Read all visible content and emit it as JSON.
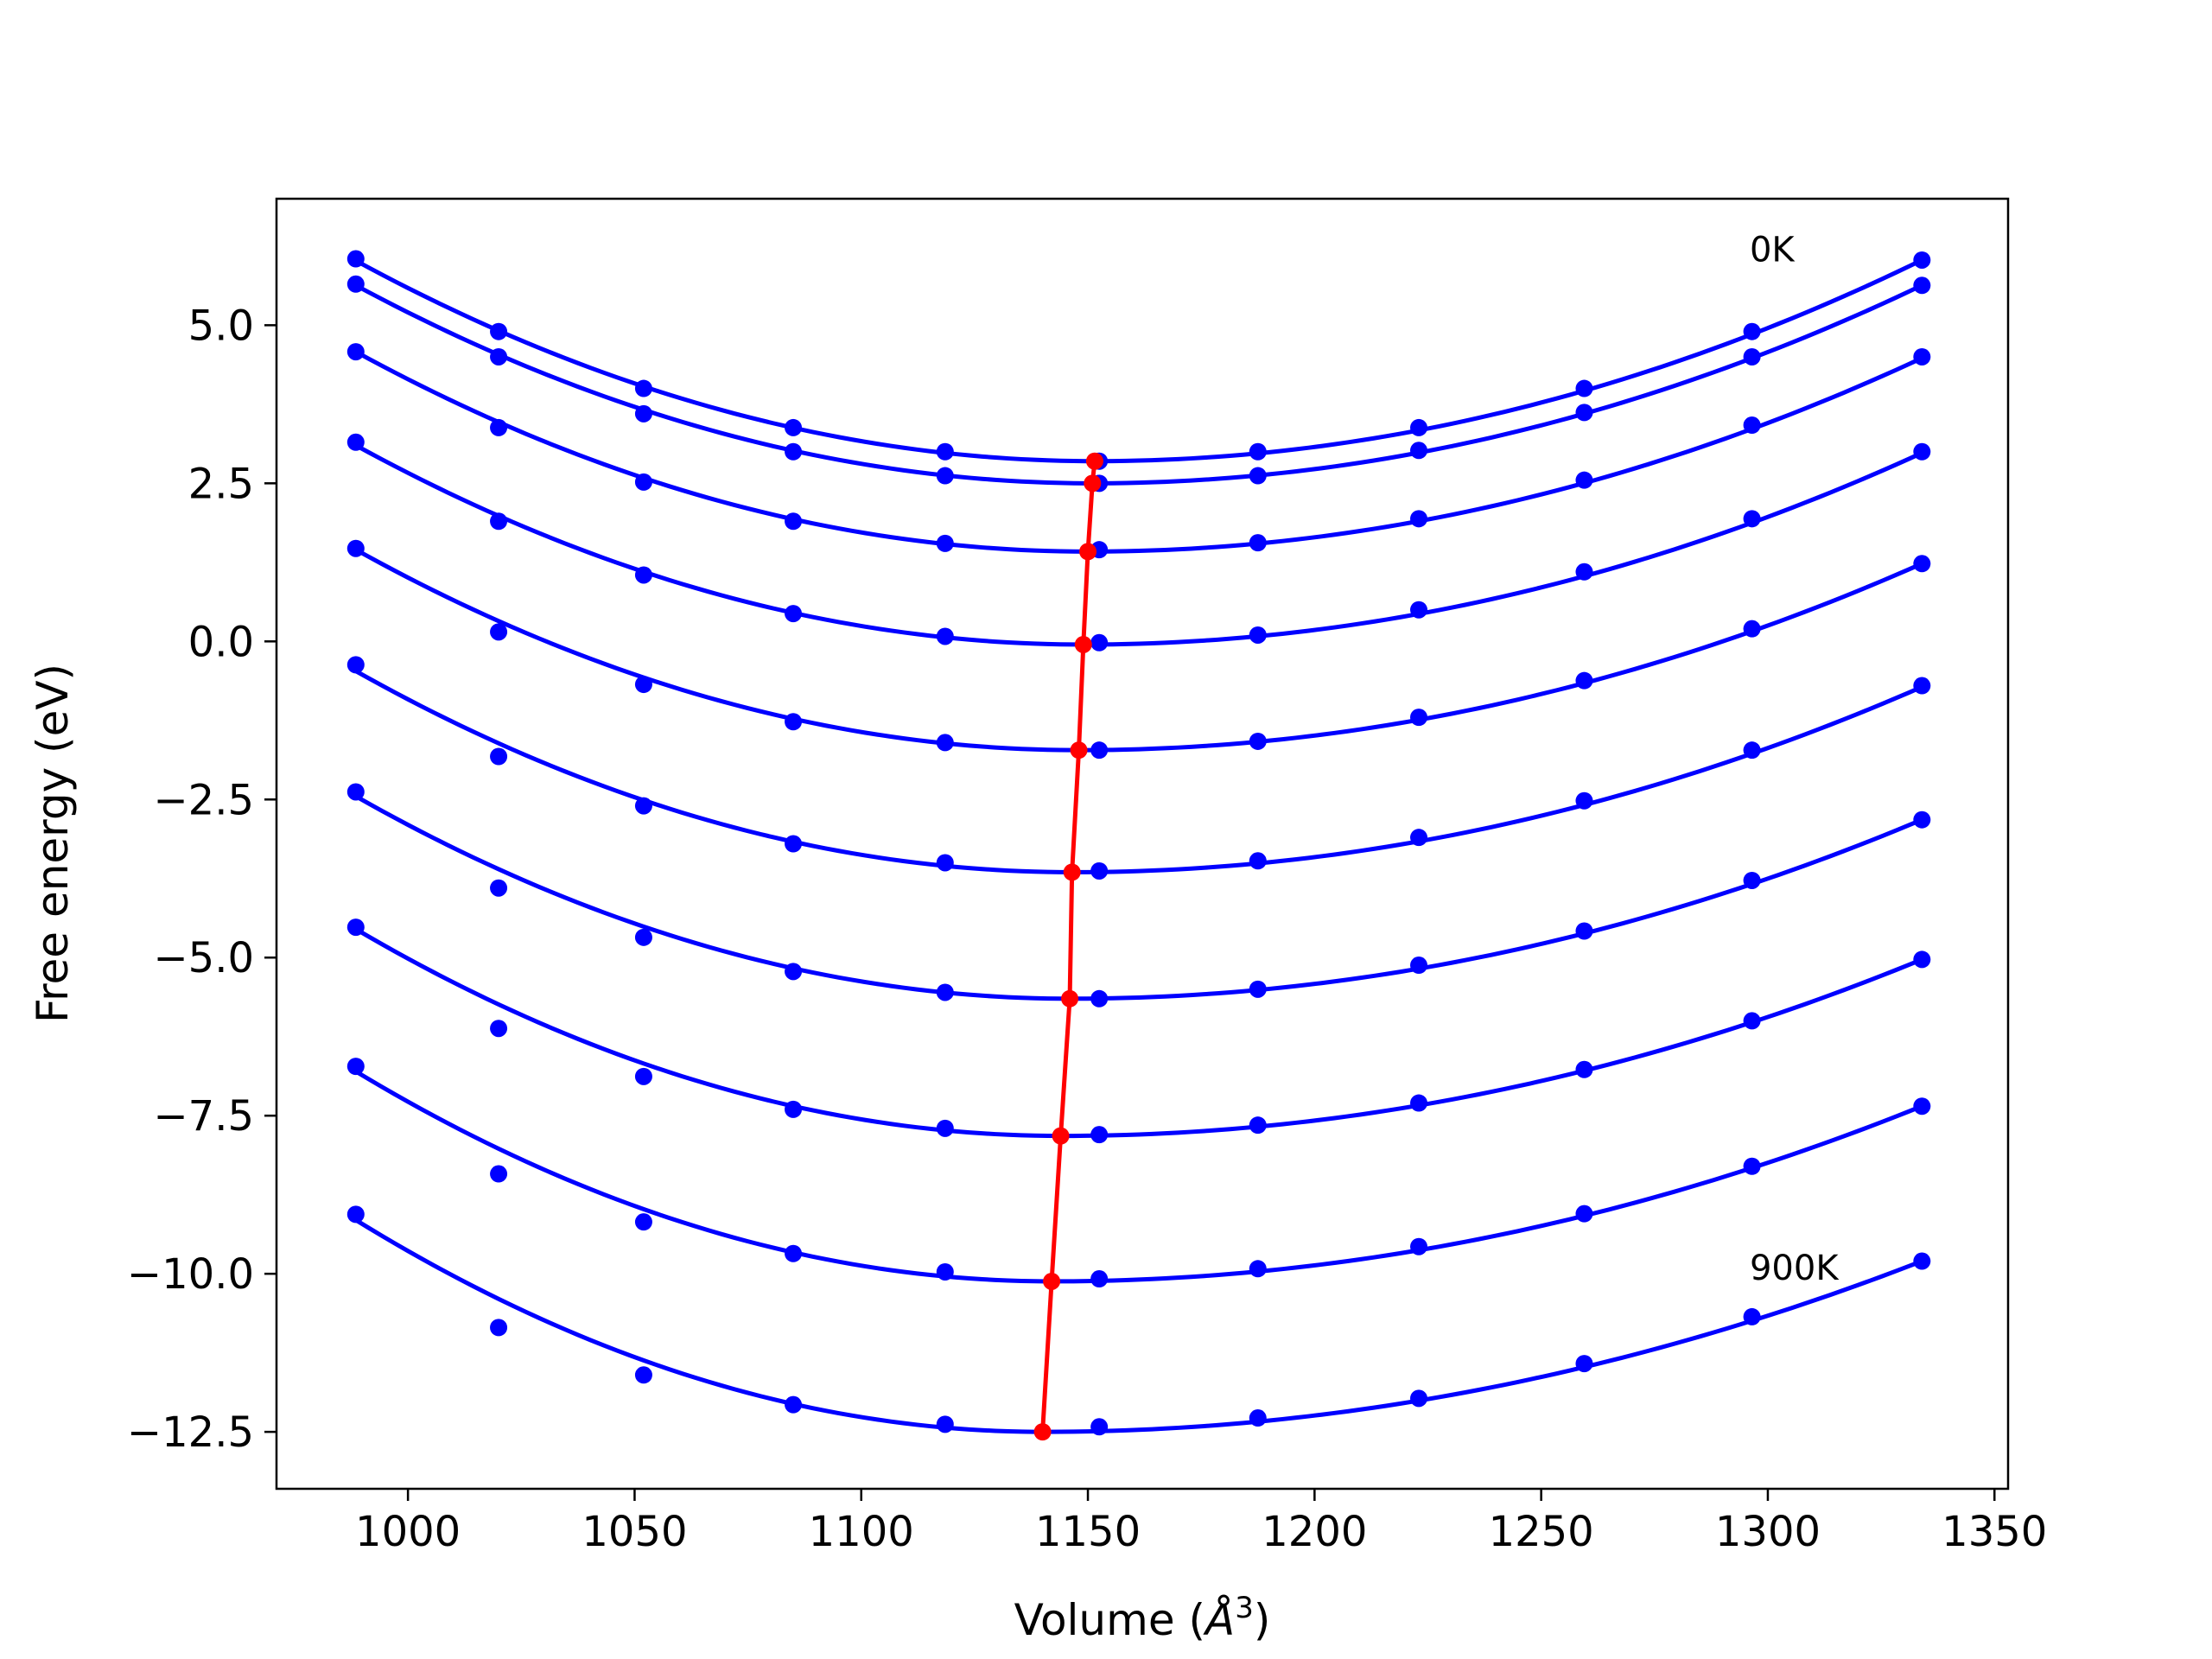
{
  "chart_data": {
    "type": "line",
    "title": "",
    "xlabel": "Volume (",
    "xlabel_unit": "Å",
    "xlabel_exp": "3",
    "xlabel_end": ")",
    "ylabel": "Free energy (eV)",
    "xlim": [
      971,
      1353
    ],
    "ylim": [
      -13.4,
      7.0
    ],
    "xticks": [
      1000,
      1050,
      1100,
      1150,
      1200,
      1250,
      1300,
      1350
    ],
    "xtick_labels": [
      "1000",
      "1050",
      "1100",
      "1150",
      "1200",
      "1250",
      "1300",
      "1350"
    ],
    "yticks": [
      5.0,
      2.5,
      0.0,
      -2.5,
      -5.0,
      -7.5,
      -10.0,
      -12.5
    ],
    "ytick_labels": [
      "5.0",
      "2.5",
      "0.0",
      "−2.5",
      "−5.0",
      "−7.5",
      "−10.0",
      "−12.5"
    ],
    "grid": false,
    "legend": "none",
    "annotations": [
      {
        "text": "0K",
        "x": 1296,
        "y": 6.2
      },
      {
        "text": "900K",
        "x": 1296,
        "y": -9.9
      }
    ],
    "x": [
      988.5,
      1020,
      1052,
      1085,
      1118.5,
      1152.5,
      1187.5,
      1223,
      1259.5,
      1296.5,
      1334
    ],
    "series": [
      {
        "y": [
          6.05,
          4.9,
          4.0,
          3.38,
          3.0,
          2.85,
          3.0,
          3.38,
          4.0,
          4.9,
          6.03
        ]
      },
      {
        "y": [
          5.65,
          4.5,
          3.6,
          3.0,
          2.62,
          2.5,
          2.62,
          3.02,
          3.62,
          4.5,
          5.63
        ]
      },
      {
        "y": [
          4.58,
          3.38,
          2.52,
          1.9,
          1.55,
          1.45,
          1.56,
          1.94,
          2.55,
          3.42,
          4.5
        ]
      },
      {
        "y": [
          3.15,
          1.9,
          1.05,
          0.44,
          0.08,
          -0.02,
          0.1,
          0.5,
          1.1,
          1.94,
          3.0
        ]
      },
      {
        "y": [
          1.47,
          0.15,
          -0.68,
          -1.27,
          -1.6,
          -1.72,
          -1.58,
          -1.2,
          -0.62,
          0.2,
          1.23
        ]
      },
      {
        "y": [
          -0.37,
          -1.82,
          -2.6,
          -3.2,
          -3.5,
          -3.63,
          -3.47,
          -3.1,
          -2.52,
          -1.72,
          -0.7
        ]
      },
      {
        "y": [
          -2.38,
          -3.9,
          -4.68,
          -5.22,
          -5.55,
          -5.65,
          -5.5,
          -5.12,
          -4.58,
          -3.78,
          -2.82
        ]
      },
      {
        "y": [
          -4.52,
          -6.12,
          -6.88,
          -7.4,
          -7.7,
          -7.8,
          -7.65,
          -7.3,
          -6.77,
          -6.0,
          -5.03
        ]
      },
      {
        "y": [
          -6.72,
          -8.42,
          -9.18,
          -9.68,
          -9.97,
          -10.08,
          -9.92,
          -9.57,
          -9.05,
          -8.3,
          -7.35
        ]
      },
      {
        "y": [
          -9.06,
          -10.85,
          -11.6,
          -12.07,
          -12.38,
          -12.42,
          -12.28,
          -11.97,
          -11.42,
          -10.68,
          -9.8
        ]
      }
    ],
    "fit_curves": [
      {
        "min_x": 1151.5,
        "min_y": 2.85,
        "y_left": 6.02,
        "y_right": 6.03
      },
      {
        "min_x": 1151.0,
        "min_y": 2.5,
        "y_left": 5.63,
        "y_right": 5.63
      },
      {
        "min_x": 1150.0,
        "min_y": 1.42,
        "y_left": 4.58,
        "y_right": 4.48
      },
      {
        "min_x": 1149.0,
        "min_y": -0.05,
        "y_left": 3.1,
        "y_right": 2.98
      },
      {
        "min_x": 1148.0,
        "min_y": -1.72,
        "y_left": 1.45,
        "y_right": 1.23
      },
      {
        "min_x": 1146.5,
        "min_y": -3.65,
        "y_left": -0.47,
        "y_right": -0.72
      },
      {
        "min_x": 1146.0,
        "min_y": -5.65,
        "y_left": -2.45,
        "y_right": -2.82
      },
      {
        "min_x": 1144.0,
        "min_y": -7.82,
        "y_left": -4.55,
        "y_right": -5.03
      },
      {
        "min_x": 1142.0,
        "min_y": -10.12,
        "y_left": -6.8,
        "y_right": -7.35
      },
      {
        "min_x": 1140.0,
        "min_y": -12.5,
        "y_left": -9.15,
        "y_right": -9.8
      }
    ],
    "fit_x_range": [
      988.5,
      1334
    ],
    "minimum_path": {
      "x": [
        1151.5,
        1151.0,
        1150.0,
        1149.0,
        1148.0,
        1146.5,
        1146.0,
        1144.0,
        1142.0,
        1140.0
      ],
      "y": [
        2.85,
        2.5,
        1.42,
        -0.05,
        -1.72,
        -3.65,
        -5.65,
        -7.82,
        -10.12,
        -12.5
      ]
    },
    "colors": {
      "points": "#0000ff",
      "fits": "#0000ff",
      "minimum_path": "#ff0000",
      "axes": "#000000"
    }
  }
}
